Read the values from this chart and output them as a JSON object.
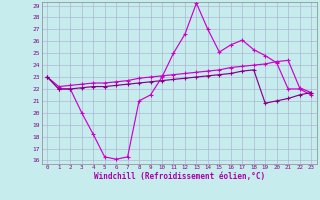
{
  "xlabel": "Windchill (Refroidissement éolien,°C)",
  "xlim": [
    0,
    23
  ],
  "ylim": [
    16,
    29
  ],
  "yticks": [
    16,
    17,
    18,
    19,
    20,
    21,
    22,
    23,
    24,
    25,
    26,
    27,
    28,
    29
  ],
  "xticks": [
    0,
    1,
    2,
    3,
    4,
    5,
    6,
    7,
    8,
    9,
    10,
    11,
    12,
    13,
    14,
    15,
    16,
    17,
    18,
    19,
    20,
    21,
    22,
    23
  ],
  "bg_color": "#c6ecee",
  "grid_color": "#aaaacc",
  "line_color1": "#cc00cc",
  "line_color2": "#880088",
  "s1_x": [
    0,
    1,
    2,
    3,
    4,
    5,
    6,
    7,
    8,
    9,
    10,
    11,
    12,
    13,
    14,
    15,
    16,
    17,
    18,
    19,
    20,
    21,
    22,
    23
  ],
  "s1_y": [
    23.0,
    22.0,
    22.0,
    20.0,
    18.2,
    16.3,
    16.1,
    16.3,
    21.0,
    21.5,
    23.0,
    25.0,
    26.6,
    29.2,
    27.0,
    25.1,
    25.7,
    26.1,
    25.3,
    24.8,
    24.2,
    22.0,
    22.0,
    21.5
  ],
  "s2_x": [
    0,
    1,
    2,
    3,
    4,
    5,
    6,
    7,
    8,
    9,
    10,
    11,
    12,
    13,
    14,
    15,
    16,
    17,
    18,
    19,
    20,
    21,
    22,
    23
  ],
  "s2_y": [
    23.0,
    22.2,
    22.3,
    22.4,
    22.5,
    22.5,
    22.6,
    22.7,
    22.9,
    23.0,
    23.1,
    23.2,
    23.3,
    23.4,
    23.5,
    23.6,
    23.8,
    23.9,
    24.0,
    24.1,
    24.3,
    24.4,
    22.1,
    21.7
  ],
  "s3_x": [
    0,
    1,
    2,
    3,
    4,
    5,
    6,
    7,
    8,
    9,
    10,
    11,
    12,
    13,
    14,
    15,
    16,
    17,
    18,
    19,
    20,
    21,
    22,
    23
  ],
  "s3_y": [
    23.0,
    22.0,
    22.0,
    22.1,
    22.2,
    22.2,
    22.3,
    22.4,
    22.5,
    22.6,
    22.7,
    22.8,
    22.9,
    23.0,
    23.1,
    23.2,
    23.3,
    23.5,
    23.6,
    20.8,
    21.0,
    21.2,
    21.5,
    21.7
  ]
}
